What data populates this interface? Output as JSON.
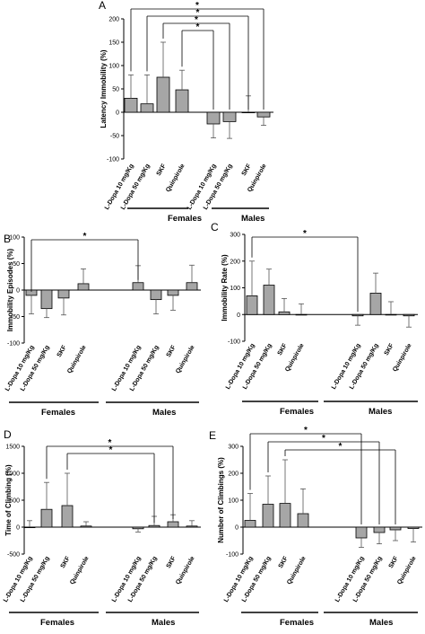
{
  "chart_data": [
    {
      "type": "bar",
      "panel_label": "A",
      "ylabel": "Latency Immobility (%)",
      "ylim": [
        -100,
        200
      ],
      "yticks": [
        -100,
        -50,
        0,
        50,
        100,
        150,
        200
      ],
      "categories": [
        "L-Dopa 10 mg/Kg",
        "L-Dopa 50 mg/Kg",
        "SKF",
        "Quinpirole",
        "L-Dopa 10 mg/Kg",
        "L-Dopa 50 mg/Kg",
        "SKF",
        "Quinpirole"
      ],
      "values": [
        30,
        18,
        75,
        48,
        -25,
        -20,
        0,
        -10
      ],
      "error": [
        50,
        62,
        75,
        42,
        30,
        36,
        35,
        18
      ],
      "groups": [
        {
          "label": "Females",
          "start": 0,
          "end": 3
        },
        {
          "label": "Males",
          "start": 4,
          "end": 7
        }
      ],
      "significance": [
        {
          "from": 0,
          "to": 7,
          "label": "*"
        },
        {
          "from": 1,
          "to": 6,
          "label": "*"
        },
        {
          "from": 2,
          "to": 5,
          "label": "*"
        },
        {
          "from": 3,
          "to": 4,
          "label": "*"
        }
      ]
    },
    {
      "type": "bar",
      "panel_label": "B",
      "ylabel": "Immobility Episodes (%)",
      "ylim": [
        -100,
        100
      ],
      "yticks": [
        -100,
        -50,
        0,
        50,
        100
      ],
      "categories": [
        "L-Dopa 10 mg/Kg",
        "L-Dopa 50 mg/Kg",
        "SKF",
        "Quinpirole",
        "L-Dopa 10 mg/Kg",
        "L-Dopa 50 mg/Kg",
        "SKF",
        "Quinpirole"
      ],
      "values": [
        -10,
        -35,
        -15,
        12,
        14,
        -18,
        -10,
        14
      ],
      "error": [
        35,
        17,
        32,
        28,
        32,
        27,
        28,
        33
      ],
      "groups": [
        {
          "label": "Females",
          "start": 0,
          "end": 3
        },
        {
          "label": "Males",
          "start": 4,
          "end": 7
        }
      ],
      "significance": [
        {
          "from": 0,
          "to": 4,
          "label": "*"
        }
      ]
    },
    {
      "type": "bar",
      "panel_label": "C",
      "ylabel": "Immobility Rate (%)",
      "ylim": [
        -100,
        300
      ],
      "yticks": [
        -100,
        0,
        100,
        200,
        300
      ],
      "categories": [
        "L-Dopa 10 mg/Kg",
        "L-Dopa 50 mg/Kg",
        "SKF",
        "Quinpirole",
        "L-Dopa 10 mg/Kg",
        "L-Dopa 50 mg/Kg",
        "SKF",
        "Quinpirole"
      ],
      "values": [
        70,
        110,
        10,
        0,
        -5,
        80,
        0,
        -5
      ],
      "error": [
        130,
        60,
        50,
        40,
        35,
        75,
        48,
        42
      ],
      "groups": [
        {
          "label": "Females",
          "start": 0,
          "end": 3
        },
        {
          "label": "Males",
          "start": 4,
          "end": 7
        }
      ],
      "significance": [
        {
          "from": 0,
          "to": 4,
          "label": "*"
        }
      ]
    },
    {
      "type": "bar",
      "panel_label": "D",
      "ylabel": "Time of Climbing (%)",
      "ylim": [
        -500,
        1500
      ],
      "yticks": [
        -500,
        0,
        500,
        1000,
        1500
      ],
      "categories": [
        "L-Dopa 10 mg/Kg",
        "L-Dopa 50 mg/Kg",
        "SKF",
        "Quinpirole",
        "L-Dopa 10 mg/Kg",
        "L-Dopa 50 mg/Kg",
        "SKF",
        "Quinpirole"
      ],
      "values": [
        0,
        330,
        400,
        20,
        -30,
        30,
        100,
        20
      ],
      "error": [
        120,
        500,
        600,
        80,
        60,
        170,
        130,
        100
      ],
      "groups": [
        {
          "label": "Females",
          "start": 0,
          "end": 3
        },
        {
          "label": "Males",
          "start": 4,
          "end": 7
        }
      ],
      "significance": [
        {
          "from": 1,
          "to": 6,
          "label": "*"
        },
        {
          "from": 2,
          "to": 5,
          "label": "*"
        }
      ]
    },
    {
      "type": "bar",
      "panel_label": "E",
      "ylabel": "Number of Climbings (%)",
      "ylim": [
        -100,
        300
      ],
      "yticks": [
        -100,
        0,
        100,
        200,
        300
      ],
      "categories": [
        "L-Dopa 10 mg/Kg",
        "L-Dopa 50 mg/Kg",
        "SKF",
        "Quinpirole",
        "L-Dopa 10 mg/Kg",
        "L-Dopa 50 mg/Kg",
        "SKF",
        "Quinpirole"
      ],
      "values": [
        25,
        85,
        88,
        50,
        -40,
        -20,
        -10,
        -5
      ],
      "error": [
        100,
        105,
        162,
        92,
        35,
        42,
        40,
        50
      ],
      "groups": [
        {
          "label": "Females",
          "start": 0,
          "end": 3
        },
        {
          "label": "Males",
          "start": 4,
          "end": 7
        }
      ],
      "significance": [
        {
          "from": 0,
          "to": 4,
          "label": "*"
        },
        {
          "from": 1,
          "to": 5,
          "label": "*"
        },
        {
          "from": 2,
          "to": 6,
          "label": "*"
        }
      ]
    }
  ],
  "colors": {
    "bar": "#a6a6a6",
    "line": "#000000"
  }
}
